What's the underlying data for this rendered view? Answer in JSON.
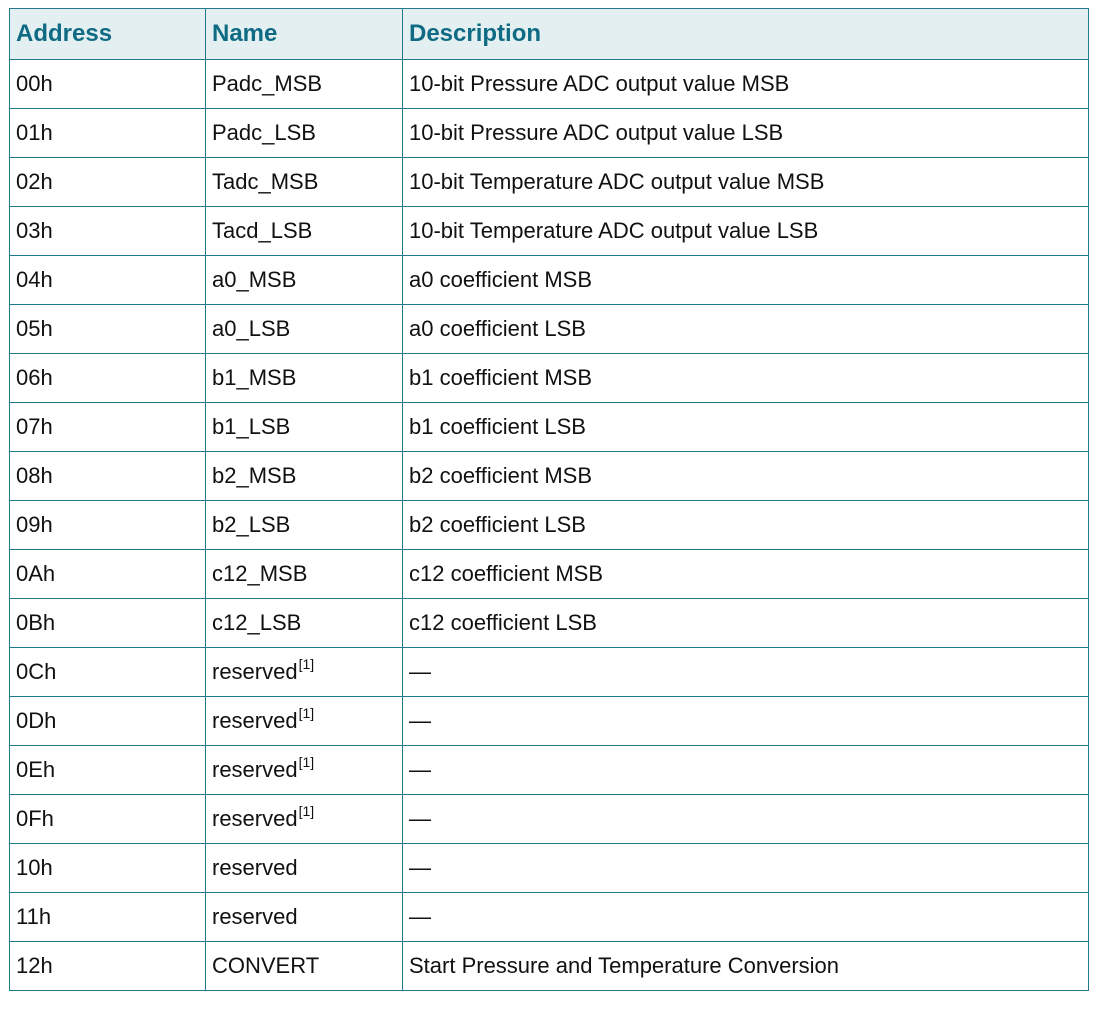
{
  "table": {
    "headers": {
      "address": "Address",
      "name": "Name",
      "description": "Description"
    },
    "rows": [
      {
        "address": "00h",
        "name": "Padc_MSB",
        "note": "",
        "description": "10-bit Pressure ADC output value MSB"
      },
      {
        "address": "01h",
        "name": "Padc_LSB",
        "note": "",
        "description": "10-bit Pressure ADC output value LSB"
      },
      {
        "address": "02h",
        "name": "Tadc_MSB",
        "note": "",
        "description": "10-bit Temperature ADC output value MSB"
      },
      {
        "address": "03h",
        "name": "Tacd_LSB",
        "note": "",
        "description": "10-bit Temperature ADC output value LSB"
      },
      {
        "address": "04h",
        "name": "a0_MSB",
        "note": "",
        "description": "a0 coefficient MSB"
      },
      {
        "address": "05h",
        "name": "a0_LSB",
        "note": "",
        "description": "a0 coefficient LSB"
      },
      {
        "address": "06h",
        "name": "b1_MSB",
        "note": "",
        "description": "b1 coefficient MSB"
      },
      {
        "address": "07h",
        "name": "b1_LSB",
        "note": "",
        "description": "b1 coefficient LSB"
      },
      {
        "address": "08h",
        "name": "b2_MSB",
        "note": "",
        "description": "b2 coefficient MSB"
      },
      {
        "address": "09h",
        "name": "b2_LSB",
        "note": "",
        "description": "b2 coefficient LSB"
      },
      {
        "address": "0Ah",
        "name": "c12_MSB",
        "note": "",
        "description": "c12 coefficient MSB"
      },
      {
        "address": "0Bh",
        "name": "c12_LSB",
        "note": "",
        "description": "c12 coefficient LSB"
      },
      {
        "address": "0Ch",
        "name": "reserved",
        "note": "[1]",
        "description": "—"
      },
      {
        "address": "0Dh",
        "name": "reserved",
        "note": "[1]",
        "description": "—"
      },
      {
        "address": "0Eh",
        "name": "reserved",
        "note": "[1]",
        "description": "—"
      },
      {
        "address": "0Fh",
        "name": "reserved",
        "note": "[1]",
        "description": "—"
      },
      {
        "address": "10h",
        "name": "reserved",
        "note": "",
        "description": "—"
      },
      {
        "address": "11h",
        "name": "reserved",
        "note": "",
        "description": "—"
      },
      {
        "address": "12h",
        "name": "CONVERT",
        "note": "",
        "description": "Start Pressure and Temperature Conversion"
      }
    ]
  },
  "colors": {
    "border": "#1f7a8c",
    "header_bg": "#e4eff1",
    "header_text": "#0f6b84"
  }
}
